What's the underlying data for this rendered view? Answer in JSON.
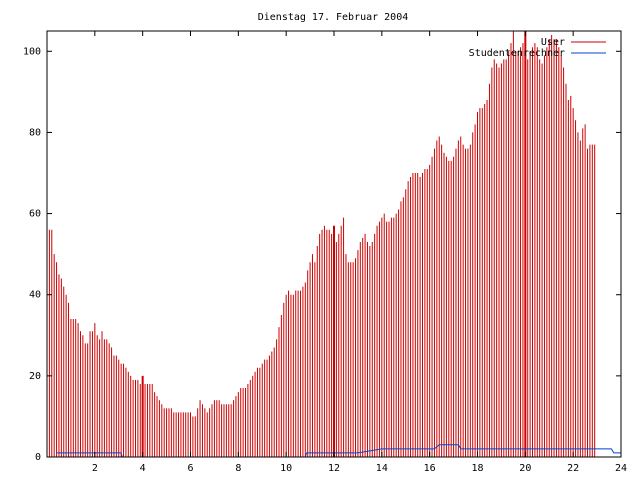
{
  "chart_data": {
    "type": "bar",
    "title": "Dienstag 17. Februar 2004",
    "xlabel": "",
    "ylabel": "",
    "xlim": [
      0,
      24
    ],
    "ylim": [
      0,
      105
    ],
    "x_ticks": [
      2,
      4,
      6,
      8,
      10,
      12,
      14,
      16,
      18,
      20,
      22,
      24
    ],
    "y_ticks": [
      0,
      20,
      40,
      60,
      80,
      100
    ],
    "grid": false,
    "legend_position": "top-right",
    "series": [
      {
        "name": "User",
        "color": "#cc0000",
        "style": "impulses",
        "x_step": 0.1,
        "x_start": 0,
        "values": [
          63,
          56,
          56,
          50,
          48,
          45,
          44,
          42,
          40,
          38,
          34,
          34,
          34,
          33,
          31,
          30,
          28,
          28,
          31,
          31,
          33,
          30,
          29,
          31,
          29,
          29,
          28,
          27,
          25,
          25,
          24,
          23,
          23,
          22,
          21,
          20,
          19,
          19,
          19,
          18,
          18,
          18,
          18,
          18,
          18,
          16,
          15,
          14,
          13,
          12,
          12,
          12,
          12,
          11,
          11,
          11,
          11,
          11,
          11,
          11,
          11,
          10,
          10,
          12,
          14,
          13,
          12,
          11,
          12,
          13,
          14,
          14,
          14,
          13,
          13,
          13,
          13,
          13,
          14,
          15,
          16,
          17,
          17,
          17,
          18,
          19,
          20,
          21,
          22,
          22,
          23,
          24,
          24,
          25,
          26,
          27,
          29,
          32,
          35,
          38,
          40,
          41,
          40,
          40,
          41,
          41,
          41,
          42,
          43,
          46,
          48,
          50,
          48,
          52,
          55,
          56,
          57,
          56,
          56,
          55,
          54,
          53,
          55,
          57,
          59,
          50,
          48,
          48,
          48,
          49,
          51,
          53,
          54,
          55,
          53,
          52,
          53,
          55,
          57,
          58,
          59,
          60,
          58,
          58,
          59,
          59,
          60,
          61,
          63,
          64,
          66,
          68,
          69,
          70,
          70,
          70,
          69,
          70,
          71,
          71,
          72,
          74,
          76,
          78,
          79,
          77,
          75,
          74,
          73,
          73,
          74,
          76,
          78,
          79,
          77,
          76,
          76,
          77,
          80,
          82,
          85,
          86,
          86,
          87,
          88,
          92,
          96,
          98,
          97,
          96,
          97,
          98,
          98,
          100,
          102,
          105,
          100,
          100,
          101,
          102,
          100,
          98,
          100,
          101,
          102,
          101,
          98,
          97,
          99,
          101,
          103,
          104,
          103,
          103,
          101,
          99,
          96,
          92,
          88,
          89,
          86,
          83,
          80,
          78,
          81,
          82,
          76,
          77,
          77,
          77
        ],
        "spikes": [
          {
            "x": 4.0,
            "value": 20
          },
          {
            "x": 12.0,
            "value": 57
          },
          {
            "x": 20.0,
            "value": 105
          }
        ]
      },
      {
        "name": "Studentenrechner",
        "color": "#0044cc",
        "style": "line",
        "x": [
          0.4,
          3.1,
          3.15,
          10.8,
          10.85,
          13.0,
          14.0,
          16.2,
          16.4,
          17.2,
          17.3,
          19.9,
          20.0,
          23.6,
          23.7,
          24.0
        ],
        "values": [
          1,
          1,
          0,
          0,
          1,
          1,
          2,
          2,
          3,
          3,
          2,
          2,
          2,
          2,
          1,
          1
        ]
      }
    ]
  }
}
